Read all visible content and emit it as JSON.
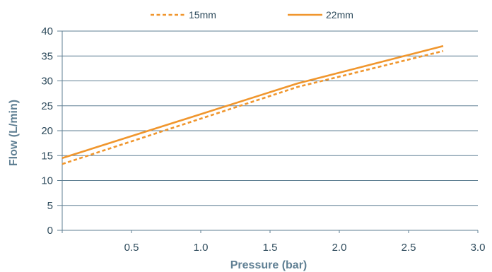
{
  "chart_data": {
    "type": "line",
    "title": "",
    "xlabel": "Pressure (bar)",
    "ylabel": "Flow (L/min)",
    "xlim": [
      0,
      3.0
    ],
    "ylim": [
      0,
      40
    ],
    "x_ticks": [
      "0.5",
      "1.0",
      "1.5",
      "2.0",
      "2.5",
      "3.0"
    ],
    "y_ticks": [
      "0",
      "5",
      "10",
      "15",
      "20",
      "25",
      "30",
      "35",
      "40"
    ],
    "grid": "horizontal",
    "legend_position": "top",
    "colors": {
      "series": "#f0962d",
      "axis": "#5f7f93",
      "grid": "#5f7f93",
      "text": "#2e4b5c"
    },
    "series": [
      {
        "name": "15mm",
        "style": "dashed",
        "x": [
          0,
          1.7,
          2.75
        ],
        "y": [
          13.3,
          28.8,
          36.0
        ]
      },
      {
        "name": "22mm",
        "style": "solid",
        "x": [
          0,
          1.7,
          2.75
        ],
        "y": [
          14.5,
          29.5,
          37.0
        ]
      }
    ]
  }
}
